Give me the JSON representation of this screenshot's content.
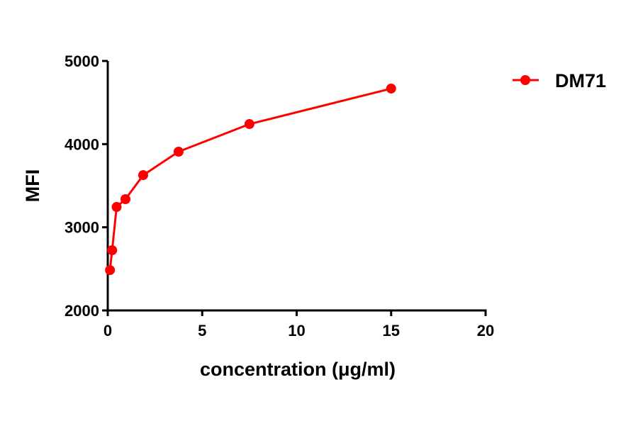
{
  "chart_data": {
    "type": "line",
    "title": "",
    "xlabel": "concentration (μg/ml)",
    "ylabel": "MFI",
    "xlim": [
      0,
      20
    ],
    "ylim": [
      2000,
      5000
    ],
    "x_ticks": [
      0,
      5,
      10,
      15,
      20
    ],
    "y_ticks": [
      2000,
      3000,
      4000,
      5000
    ],
    "grid": false,
    "legend_position": "top-right, outside plot",
    "series": [
      {
        "name": "DM71",
        "color": "#ff0000",
        "marker": "circle",
        "x": [
          0.117,
          0.234,
          0.469,
          0.9375,
          1.875,
          3.75,
          7.5,
          15
        ],
        "y": [
          2485,
          2724,
          3244,
          3338,
          3627,
          3909,
          4241,
          4668
        ]
      }
    ]
  }
}
